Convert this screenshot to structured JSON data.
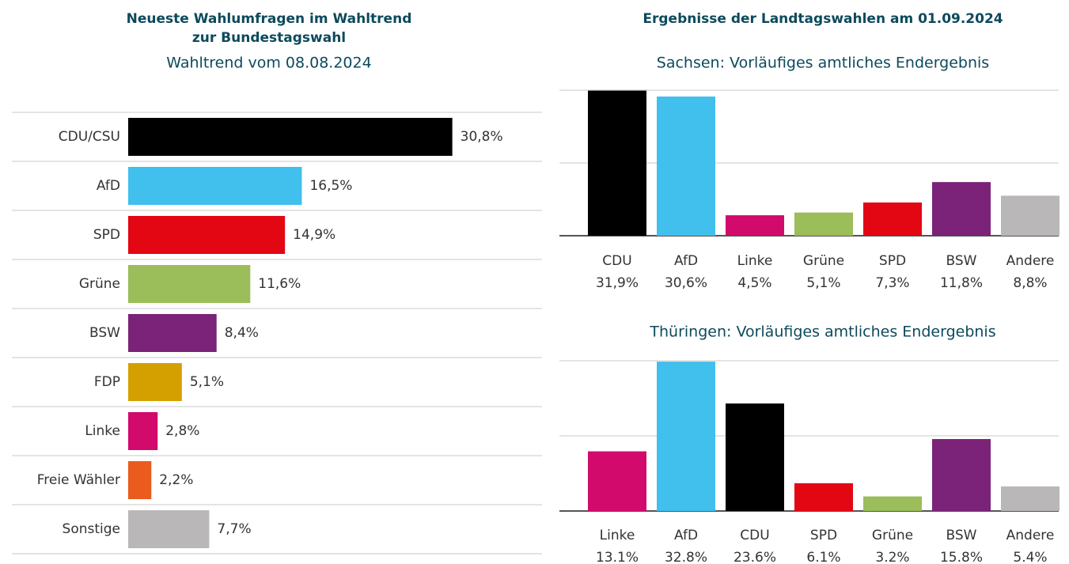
{
  "heading": "Ergebnisse der Landtagswahlen am 01.09.2024",
  "chart_data": [
    {
      "type": "hbar",
      "title": [
        "Neueste Wahlumfragen im Wahltrend",
        "zur Bundestagswahl"
      ],
      "subtitle": "Wahltrend vom 08.08.2024",
      "categories": [
        "CDU/CSU",
        "AfD",
        "SPD",
        "Grüne",
        "BSW",
        "FDP",
        "Linke",
        "Freie Wähler",
        "Sonstige"
      ],
      "values": [
        30.8,
        16.5,
        14.9,
        11.6,
        8.4,
        5.1,
        2.8,
        2.2,
        7.7
      ],
      "value_labels": [
        "30,8%",
        "16,5%",
        "14,9%",
        "11,6%",
        "8,4%",
        "5,1%",
        "2,8%",
        "2,2%",
        "7,7%"
      ],
      "colors": [
        "#000000",
        "#41bfed",
        "#e30613",
        "#9bbd5a",
        "#7b2378",
        "#d4a000",
        "#d10a6c",
        "#ea5b1e",
        "#b9b7b7"
      ],
      "xlim": [
        0,
        40
      ]
    },
    {
      "type": "bar",
      "title": "Sachsen: Vorläufiges amtliches Endergebnis",
      "categories": [
        "CDU",
        "AfD",
        "Linke",
        "Grüne",
        "SPD",
        "BSW",
        "Andere"
      ],
      "values": [
        31.9,
        30.6,
        4.5,
        5.1,
        7.3,
        11.8,
        8.8
      ],
      "value_labels": [
        "31,9%",
        "30,6%",
        "4,5%",
        "5,1%",
        "7,3%",
        "11,8%",
        "8,8%"
      ],
      "colors": [
        "#000000",
        "#41bfed",
        "#d10a6c",
        "#9bbd5a",
        "#e30613",
        "#7b2378",
        "#b9b7b7"
      ],
      "ylim": [
        0,
        32
      ],
      "gridlines": [
        0,
        16,
        32
      ]
    },
    {
      "type": "bar",
      "title": "Thüringen: Vorläufiges amtliches Endergebnis",
      "categories": [
        "Linke",
        "AfD",
        "CDU",
        "SPD",
        "Grüne",
        "BSW",
        "Andere"
      ],
      "values": [
        13.1,
        32.8,
        23.6,
        6.1,
        3.2,
        15.8,
        5.4
      ],
      "value_labels": [
        "13.1%",
        "32.8%",
        "23.6%",
        "6.1%",
        "3.2%",
        "15.8%",
        "5.4%"
      ],
      "colors": [
        "#d10a6c",
        "#41bfed",
        "#000000",
        "#e30613",
        "#9bbd5a",
        "#7b2378",
        "#b9b7b7"
      ],
      "ylim": [
        0,
        33
      ],
      "gridlines": [
        0,
        16.5,
        33
      ]
    }
  ]
}
